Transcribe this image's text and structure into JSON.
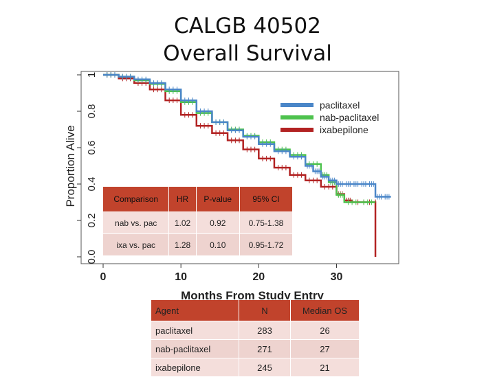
{
  "slide": {
    "title_line1": "CALGB 40502",
    "title_line2": "Overall Survival"
  },
  "comparison_table": {
    "headers": [
      "Comparison",
      "HR",
      "P-value",
      "95% CI"
    ],
    "rows": [
      [
        "nab vs. pac",
        "1.02",
        "0.92",
        "0.75-1.38"
      ],
      [
        "ixa vs. pac",
        "1.28",
        "0.10",
        "0.95-1.72"
      ]
    ]
  },
  "agent_table": {
    "headers": [
      "Agent",
      "N",
      "Median OS"
    ],
    "rows": [
      [
        "paclitaxel",
        "283",
        "26"
      ],
      [
        "nab-paclitaxel",
        "271",
        "27"
      ],
      [
        "ixabepilone",
        "245",
        "21"
      ]
    ]
  },
  "chart_data": {
    "type": "line",
    "title": "",
    "xlabel": "Months From Study Entry",
    "ylabel": "Proportion Alive",
    "xlim": [
      0,
      38
    ],
    "ylim": [
      0,
      1.0
    ],
    "xticks": [
      "0",
      "10",
      "20",
      "30"
    ],
    "yticks": [
      "0.0",
      "0.2",
      "0.4",
      "0.6",
      "0.8",
      "1"
    ],
    "legend_position": "top-right",
    "series": [
      {
        "name": "paclitaxel",
        "color": "#4a86c8",
        "points": [
          [
            0,
            1.0
          ],
          [
            2,
            0.99
          ],
          [
            4,
            0.975
          ],
          [
            6,
            0.955
          ],
          [
            8,
            0.92
          ],
          [
            10,
            0.86
          ],
          [
            12,
            0.8
          ],
          [
            14,
            0.74
          ],
          [
            16,
            0.695
          ],
          [
            18,
            0.66
          ],
          [
            20,
            0.62
          ],
          [
            22,
            0.58
          ],
          [
            24,
            0.55
          ],
          [
            26,
            0.5
          ],
          [
            27,
            0.47
          ],
          [
            28,
            0.44
          ],
          [
            29,
            0.42
          ],
          [
            30,
            0.4
          ],
          [
            31,
            0.4
          ],
          [
            32,
            0.4
          ],
          [
            33,
            0.4
          ],
          [
            34,
            0.4
          ],
          [
            35,
            0.33
          ],
          [
            36,
            0.33
          ],
          [
            37,
            0.33
          ]
        ]
      },
      {
        "name": "nab-paclitaxel",
        "color": "#4dc24d",
        "points": [
          [
            0,
            1.0
          ],
          [
            2,
            0.99
          ],
          [
            4,
            0.97
          ],
          [
            6,
            0.95
          ],
          [
            8,
            0.91
          ],
          [
            10,
            0.85
          ],
          [
            12,
            0.79
          ],
          [
            14,
            0.74
          ],
          [
            16,
            0.7
          ],
          [
            18,
            0.665
          ],
          [
            20,
            0.63
          ],
          [
            22,
            0.59
          ],
          [
            24,
            0.56
          ],
          [
            26,
            0.51
          ],
          [
            28,
            0.45
          ],
          [
            29,
            0.41
          ],
          [
            30,
            0.34
          ],
          [
            31,
            0.3
          ],
          [
            33,
            0.3
          ],
          [
            35,
            0.3
          ]
        ]
      },
      {
        "name": "ixabepilone",
        "color": "#b22222",
        "points": [
          [
            0,
            1.0
          ],
          [
            2,
            0.98
          ],
          [
            4,
            0.955
          ],
          [
            6,
            0.92
          ],
          [
            8,
            0.86
          ],
          [
            10,
            0.78
          ],
          [
            12,
            0.72
          ],
          [
            14,
            0.68
          ],
          [
            16,
            0.64
          ],
          [
            18,
            0.59
          ],
          [
            20,
            0.54
          ],
          [
            22,
            0.49
          ],
          [
            24,
            0.45
          ],
          [
            26,
            0.42
          ],
          [
            28,
            0.385
          ],
          [
            30,
            0.345
          ],
          [
            31,
            0.31
          ],
          [
            32,
            0.3
          ],
          [
            35,
            0.3
          ],
          [
            35,
            0.0
          ]
        ]
      }
    ]
  }
}
